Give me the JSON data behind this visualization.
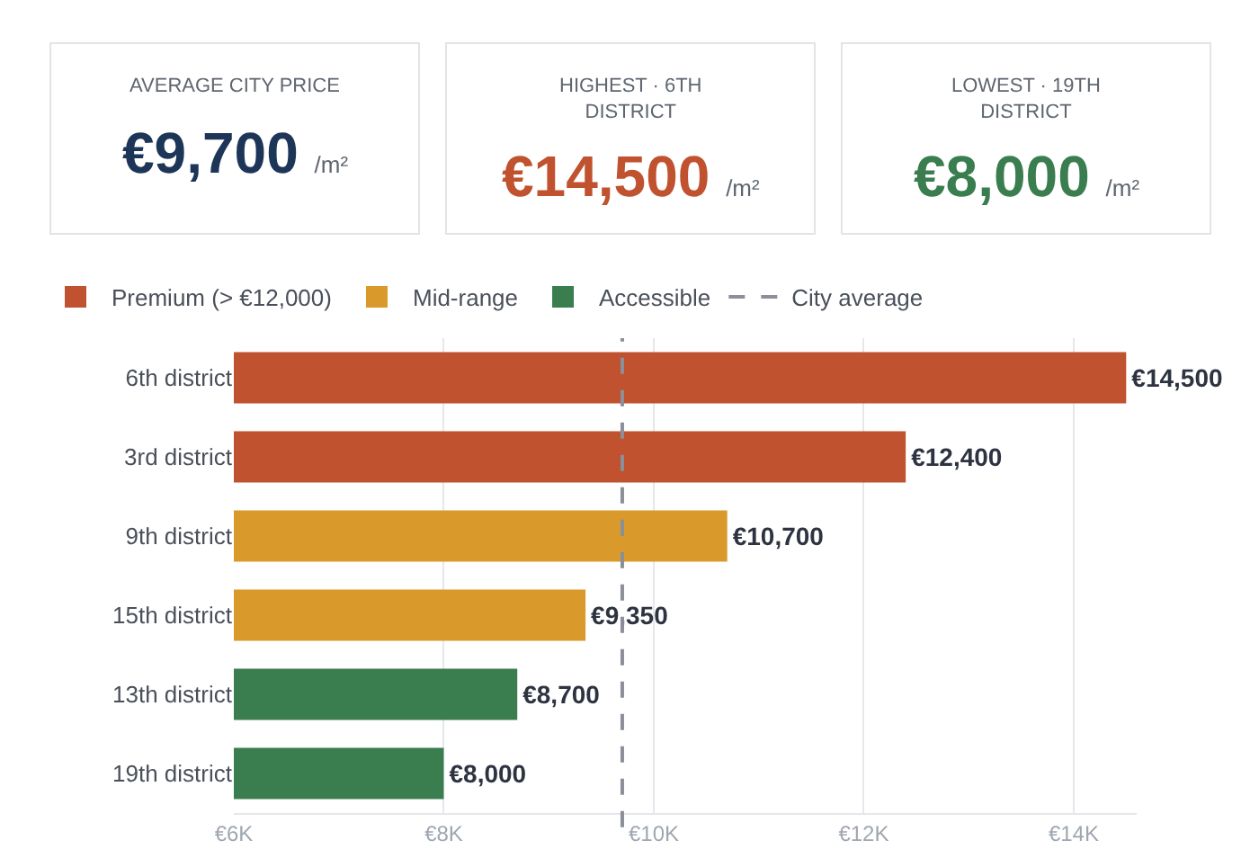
{
  "chart_data": [
    {
      "type": "other",
      "title": "AVERAGE CITY PRICE",
      "annotations": [
        "€9,700",
        "/m²"
      ],
      "color": "#1d3557"
    },
    {
      "type": "other",
      "title": "HIGHEST · 6TH DISTRICT",
      "annotations": [
        "€14,500",
        "/m²"
      ],
      "color": "#c0522f"
    },
    {
      "type": "other",
      "title": "LOWEST · 19TH DISTRICT",
      "annotations": [
        "€8,000",
        "/m²"
      ],
      "color": "#3a7d4f"
    },
    {
      "type": "bar",
      "orientation": "horizontal",
      "categories": [
        "6th district",
        "3rd district",
        "9th district",
        "15th district",
        "13th district",
        "19th district"
      ],
      "series": [
        {
          "name": "Premium (> €12,000)",
          "color": "#c0522f",
          "values": [
            14500,
            12400,
            null,
            null,
            null,
            null
          ],
          "value_labels": [
            "€14,500",
            "€12,400",
            null,
            null,
            null,
            null
          ]
        },
        {
          "name": "Mid-range",
          "color": "#d99a2b",
          "values": [
            null,
            null,
            10700,
            9350,
            null,
            null
          ],
          "value_labels": [
            null,
            null,
            "€10,700",
            "€9,350",
            null,
            null
          ]
        },
        {
          "name": "Accessible",
          "color": "#3a7d4f",
          "values": [
            null,
            null,
            null,
            null,
            8700,
            8000
          ],
          "value_labels": [
            null,
            null,
            null,
            null,
            "€8,700",
            "€8,000"
          ]
        }
      ],
      "xlim": [
        6000,
        14600
      ],
      "xticks": [
        {
          "value": 6000,
          "label": "€6K"
        },
        {
          "value": 8000,
          "label": "€8K"
        },
        {
          "value": 10000,
          "label": "€10K"
        },
        {
          "value": 12000,
          "label": "€12K"
        },
        {
          "value": 14000,
          "label": "€14K"
        }
      ],
      "ref_lines": [
        {
          "axis": "x",
          "value": 9700,
          "label": "City average",
          "color": "#8a8f98",
          "line_style": "dashed"
        }
      ],
      "grid": "x",
      "legend": "top left"
    }
  ]
}
